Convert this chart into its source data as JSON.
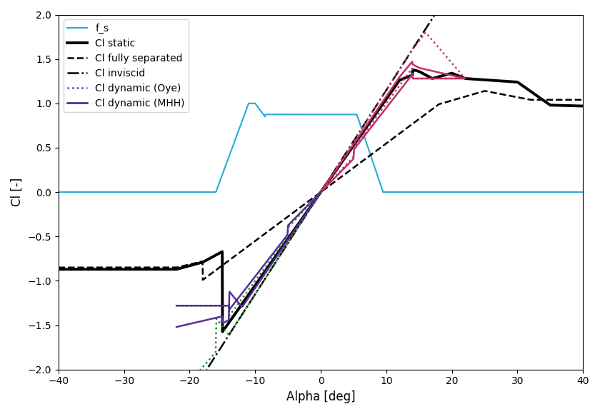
{
  "xlabel": "Alpha [deg]",
  "ylabel": "Cl [-]",
  "xlim": [
    -40,
    40
  ],
  "ylim": [
    -2.0,
    2.0
  ],
  "col_fs": "#29aad5",
  "col_static": "#000000",
  "col_inviscid": "#000000",
  "col_fully_sep": "#000000",
  "col_oye_pos": "#c0306a",
  "col_oye_neg": "#228b22",
  "col_mhh_pos": "#c0306a",
  "col_mhh_neg": "#5a2d9a",
  "col_oye_legend": "#4444cc",
  "col_mhh_legend": "#22209a"
}
